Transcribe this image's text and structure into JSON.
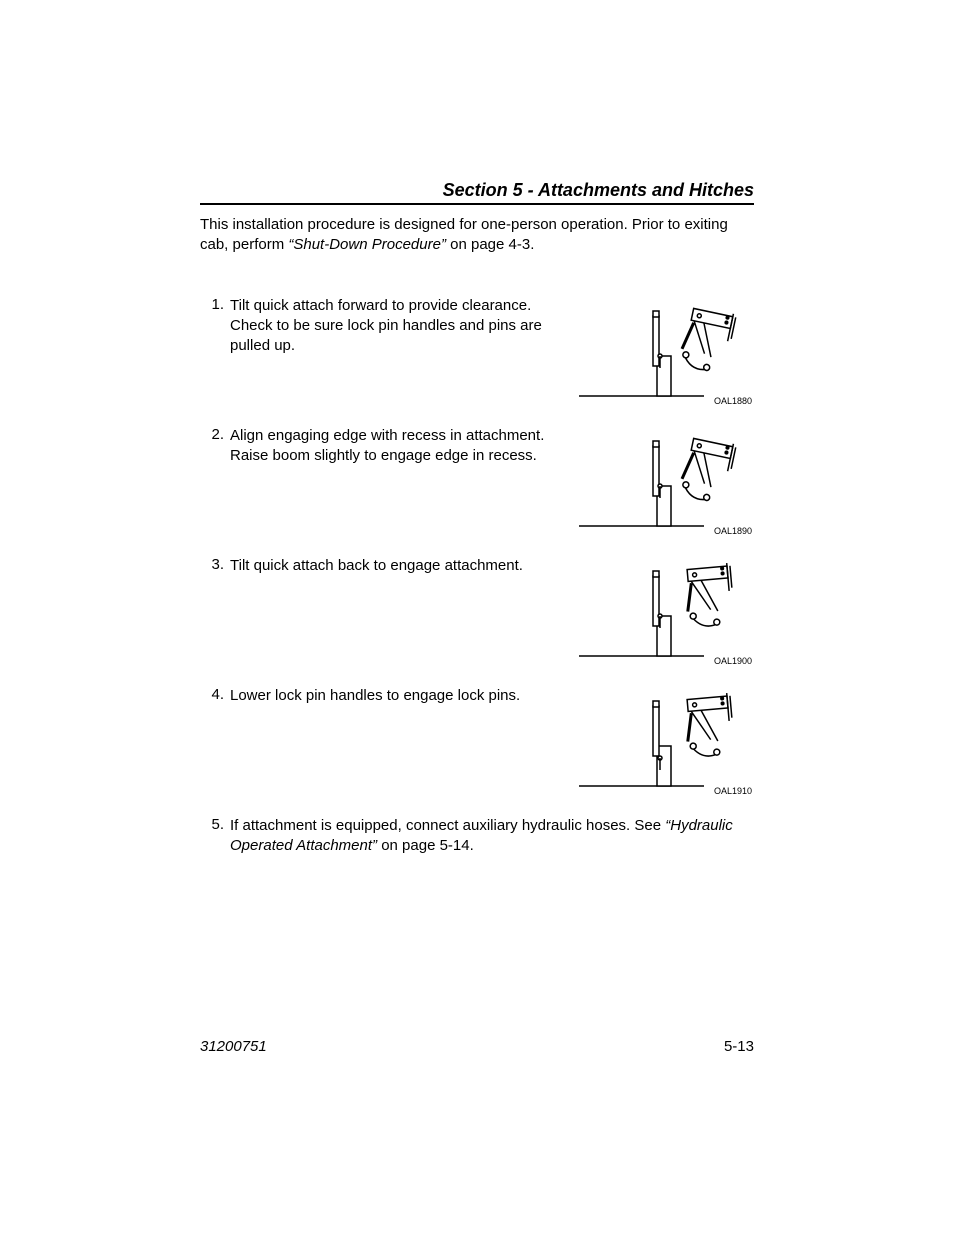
{
  "header": {
    "section": "Section 5 - Attachments and Hitches"
  },
  "intro": {
    "prefix": "This installation procedure is designed for one-person operation. Prior to exiting cab, perform ",
    "ref_italic": "“Shut-Down Procedure”",
    "suffix": " on page 4-3."
  },
  "steps": [
    {
      "n": "1.",
      "text": "Tilt quick attach forward to provide clearance. Check to be sure lock pin handles and pins are pulled up.",
      "fig_code": "OAL1880",
      "tilt": "forward",
      "lock_down": false
    },
    {
      "n": "2.",
      "text": "Align engaging edge with recess in attachment. Raise boom slightly to engage edge in recess.",
      "fig_code": "OAL1890",
      "tilt": "forward",
      "lock_down": false
    },
    {
      "n": "3.",
      "text": "Tilt quick attach back to engage attachment.",
      "fig_code": "OAL1900",
      "tilt": "back",
      "lock_down": false
    },
    {
      "n": "4.",
      "text": "Lower lock pin handles to engage lock pins.",
      "fig_code": "OAL1910",
      "tilt": "back",
      "lock_down": true
    },
    {
      "n": "5.",
      "text_prefix": "If attachment is equipped, connect auxiliary hydraulic hoses. See ",
      "text_ref": "“Hydraulic Operated Attachment”",
      "text_suffix": " on page 5-14.",
      "no_figure": true
    }
  ],
  "footer": {
    "doc_number": "31200751",
    "page_number": "5-13"
  },
  "style": {
    "font_family": "Arial, Helvetica, sans-serif",
    "body_fontsize": 15,
    "header_fontsize": 18,
    "figlabel_fontsize": 9,
    "text_color": "#000000",
    "bg_color": "#ffffff",
    "line_color": "#000000"
  }
}
